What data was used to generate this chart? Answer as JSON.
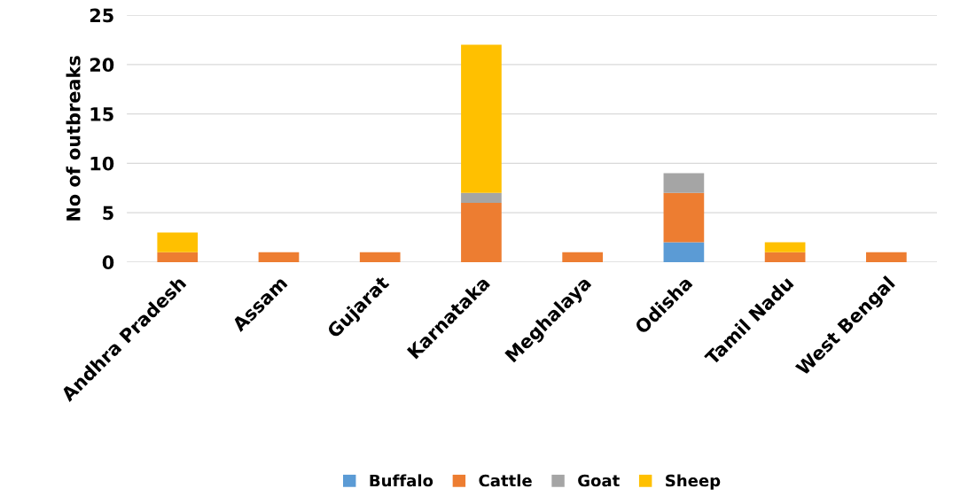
{
  "chart_data": {
    "type": "bar",
    "stacked": true,
    "ylabel": "No of outbreaks",
    "categories": [
      "Andhra Pradesh",
      "Assam",
      "Gujarat",
      "Karnataka",
      "Meghalaya",
      "Odisha",
      "Tamil Nadu",
      "West Bengal"
    ],
    "series": [
      {
        "name": "Buffalo",
        "color": "#5b9bd5",
        "values": [
          0,
          0,
          0,
          0,
          0,
          2,
          0,
          0
        ]
      },
      {
        "name": "Cattle",
        "color": "#ed7d31",
        "values": [
          1,
          1,
          1,
          6,
          1,
          5,
          1,
          1
        ]
      },
      {
        "name": "Goat",
        "color": "#a5a5a5",
        "values": [
          0,
          0,
          0,
          1,
          0,
          2,
          0,
          0
        ]
      },
      {
        "name": "Sheep",
        "color": "#ffc000",
        "values": [
          2,
          0,
          0,
          15,
          0,
          0,
          1,
          0
        ]
      }
    ],
    "ylim": [
      0,
      25
    ],
    "yticks": [
      0,
      5,
      10,
      15,
      20,
      25
    ],
    "grid": "y",
    "legend": "bottom"
  }
}
